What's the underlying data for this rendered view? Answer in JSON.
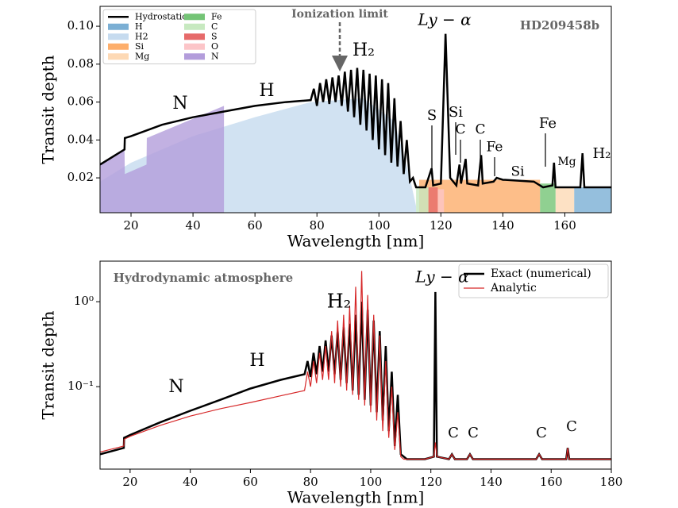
{
  "chart_data": [
    {
      "type": "line",
      "x_label": "Wavelength [nm]",
      "y_label": "Transit depth",
      "xlim": [
        10,
        175
      ],
      "xticks": [
        20,
        40,
        60,
        80,
        100,
        120,
        140,
        160
      ],
      "ylim": [
        0.0016,
        0.1105
      ],
      "yticks": [
        0.02,
        0.04,
        0.06,
        0.08,
        {
          "value": 0.1,
          "label": "0.10"
        }
      ],
      "legend": "upper left",
      "legend_columns": 2,
      "series": [
        {
          "name": "Hydrostatic",
          "color": "#000000",
          "style": "line",
          "x": [
            10,
            17.9,
            18,
            20,
            30,
            40,
            50,
            60,
            70,
            78,
            79,
            80,
            81,
            82,
            83,
            84,
            85,
            86,
            87,
            88,
            89,
            90,
            91,
            92,
            93,
            94,
            95,
            96,
            97,
            98,
            99,
            100,
            101,
            102,
            103,
            104,
            105,
            106,
            107,
            108,
            109,
            110,
            111,
            112,
            115,
            117,
            117.5,
            120,
            121.5,
            123,
            125,
            126,
            126.5,
            128,
            128.5,
            132,
            133,
            133.5,
            137,
            138,
            140,
            150,
            153,
            156,
            156.5,
            157,
            165,
            165.7,
            166.3,
            175
          ],
          "values": [
            0.027,
            0.035,
            0.041,
            0.042,
            0.048,
            0.052,
            0.055,
            0.058,
            0.06,
            0.061,
            0.067,
            0.058,
            0.07,
            0.06,
            0.072,
            0.059,
            0.073,
            0.06,
            0.074,
            0.058,
            0.076,
            0.055,
            0.077,
            0.052,
            0.078,
            0.048,
            0.077,
            0.045,
            0.075,
            0.04,
            0.074,
            0.035,
            0.072,
            0.032,
            0.07,
            0.028,
            0.062,
            0.026,
            0.05,
            0.022,
            0.04,
            0.018,
            0.02,
            0.015,
            0.015,
            0.025,
            0.016,
            0.017,
            0.096,
            0.02,
            0.016,
            0.027,
            0.017,
            0.03,
            0.017,
            0.016,
            0.032,
            0.017,
            0.018,
            0.02,
            0.019,
            0.018,
            0.015,
            0.016,
            0.028,
            0.015,
            0.015,
            0.033,
            0.015,
            0.015
          ]
        },
        {
          "name": "H",
          "color": "#7bafd4",
          "style": "area",
          "x": [
            163,
            175
          ],
          "values": [
            0.015,
            0.015
          ]
        },
        {
          "name": "H2",
          "color": "#c6dbef",
          "style": "area",
          "x": [
            10,
            20,
            40,
            60,
            78,
            95,
            105,
            110,
            112
          ],
          "values": [
            0.018,
            0.028,
            0.042,
            0.052,
            0.06,
            0.062,
            0.05,
            0.02,
            0.005
          ]
        },
        {
          "name": "Si",
          "color": "#fdae6b",
          "style": "area",
          "x": [
            113,
            152
          ],
          "values": [
            0.019,
            0.019
          ]
        },
        {
          "name": "Mg",
          "color": "#fdd9b5",
          "style": "area",
          "x": [
            157,
            163
          ],
          "values": [
            0.015,
            0.015
          ]
        },
        {
          "name": "Fe",
          "color": "#74c476",
          "style": "area",
          "x": [
            152,
            157
          ],
          "values": [
            0.017,
            0.017
          ]
        },
        {
          "name": "C",
          "color": "#c7e9c0",
          "style": "area",
          "x": [
            112,
            116
          ],
          "values": [
            0.015,
            0.015
          ]
        },
        {
          "name": "S",
          "color": "#e66a6a",
          "style": "area",
          "x": [
            116,
            119
          ],
          "values": [
            0.015,
            0.015
          ]
        },
        {
          "name": "O",
          "color": "#fcc5c8",
          "style": "area",
          "x": [
            119,
            121
          ],
          "values": [
            0.014,
            0.014
          ]
        },
        {
          "name": "N",
          "color": "#b39ddb",
          "style": "area",
          "x": [
            10,
            17.9,
            18,
            25,
            25.1,
            50
          ],
          "values": [
            0.027,
            0.035,
            0.022,
            0.027,
            0.041,
            0.058
          ]
        }
      ],
      "annotations": [
        "Ionization limit",
        "Ly − α",
        "HD209458b",
        "N",
        "H",
        "H₂",
        "S",
        "Si",
        "C",
        "C",
        "Fe",
        "Si",
        "Fe",
        "Mg",
        "H₂"
      ]
    },
    {
      "type": "line",
      "x_label": "Wavelength [nm]",
      "y_label": "Transit depth",
      "xlim": [
        10,
        180
      ],
      "xticks": [
        20,
        40,
        60,
        80,
        100,
        120,
        140,
        160,
        180
      ],
      "ylim": [
        0.0107,
        3.0
      ],
      "log_y": true,
      "yticks": [
        {
          "value": 0.1,
          "label": "10⁻¹"
        },
        {
          "value": 1,
          "label": "10⁰"
        }
      ],
      "legend": "upper right",
      "legend_columns": 1,
      "series": [
        {
          "name": "Exact (numerical)",
          "color": "#000000",
          "style": "line",
          "x": [
            10,
            17.9,
            18,
            20,
            30,
            40,
            50,
            60,
            70,
            78,
            79,
            80,
            81,
            82,
            83,
            84,
            85,
            86,
            87,
            88,
            89,
            90,
            91,
            92,
            93,
            94,
            95,
            96,
            97,
            98,
            99,
            100,
            101,
            102,
            103,
            104,
            105,
            106,
            107,
            108,
            109,
            110,
            111,
            112,
            118,
            121,
            121.5,
            122,
            126,
            127,
            128,
            132,
            133,
            134,
            155,
            156,
            157,
            165,
            165.5,
            166,
            180
          ],
          "values": [
            0.016,
            0.019,
            0.025,
            0.027,
            0.038,
            0.052,
            0.07,
            0.095,
            0.12,
            0.14,
            0.2,
            0.13,
            0.25,
            0.14,
            0.3,
            0.15,
            0.35,
            0.15,
            0.4,
            0.14,
            0.45,
            0.12,
            0.5,
            0.11,
            0.55,
            0.09,
            0.7,
            0.08,
            1.0,
            0.07,
            0.8,
            0.06,
            0.6,
            0.05,
            0.45,
            0.04,
            0.3,
            0.03,
            0.15,
            0.02,
            0.08,
            0.016,
            0.015,
            0.014,
            0.014,
            0.015,
            1.3,
            0.015,
            0.014,
            0.016,
            0.014,
            0.014,
            0.016,
            0.014,
            0.014,
            0.016,
            0.014,
            0.014,
            0.019,
            0.014,
            0.014
          ]
        },
        {
          "name": "Analytic",
          "color": "#d62728",
          "style": "line",
          "x": [
            10,
            17.9,
            18,
            20,
            30,
            40,
            50,
            60,
            70,
            78,
            79,
            80,
            81,
            82,
            83,
            84,
            85,
            86,
            87,
            88,
            89,
            90,
            91,
            92,
            93,
            94,
            95,
            96,
            97,
            98,
            99,
            100,
            101,
            102,
            103,
            104,
            105,
            106,
            107,
            108,
            109,
            110,
            111,
            112,
            118,
            121,
            121.5,
            122,
            126,
            127,
            128,
            132,
            133,
            134,
            155,
            156,
            157,
            165,
            165.5,
            166,
            180
          ],
          "values": [
            0.017,
            0.02,
            0.024,
            0.026,
            0.035,
            0.045,
            0.055,
            0.065,
            0.078,
            0.09,
            0.15,
            0.1,
            0.2,
            0.11,
            0.25,
            0.12,
            0.3,
            0.12,
            0.45,
            0.11,
            0.6,
            0.1,
            0.7,
            0.09,
            0.9,
            0.08,
            1.5,
            0.07,
            2.3,
            0.06,
            1.2,
            0.05,
            0.7,
            0.04,
            0.4,
            0.03,
            0.2,
            0.025,
            0.1,
            0.018,
            0.05,
            0.015,
            0.014,
            0.014,
            0.014,
            0.015,
            0.022,
            0.015,
            0.014,
            0.016,
            0.014,
            0.014,
            0.016,
            0.014,
            0.014,
            0.016,
            0.014,
            0.014,
            0.019,
            0.014,
            0.014
          ]
        }
      ],
      "annotations": [
        "Hydrodynamic atmosphere",
        "Ly − α",
        "H₂",
        "H",
        "N",
        "C",
        "C",
        "C",
        "C"
      ]
    }
  ]
}
